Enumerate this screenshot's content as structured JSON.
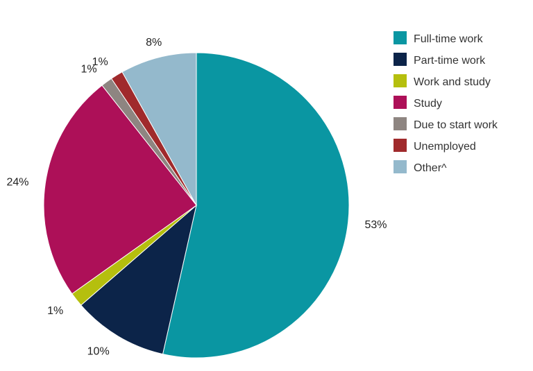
{
  "chart_data": {
    "type": "pie",
    "title": "",
    "legend_position": "top-right",
    "slices": [
      {
        "name": "Full-time work",
        "value": 53,
        "label": "53%",
        "color": "#0a96a2"
      },
      {
        "name": "Part-time work",
        "value": 10,
        "label": "10%",
        "color": "#0c2449"
      },
      {
        "name": "Work and study",
        "value": 1.5,
        "label": "1%",
        "color": "#b5bf0e"
      },
      {
        "name": "Study",
        "value": 24,
        "label": "24%",
        "color": "#ad1058"
      },
      {
        "name": "Due to start work",
        "value": 1.2,
        "label": "1%",
        "color": "#8e8581"
      },
      {
        "name": "Unemployed",
        "value": 1.3,
        "label": "1%",
        "color": "#a02a2c"
      },
      {
        "name": "Other^",
        "value": 8,
        "label": "8%",
        "color": "#94b9cc"
      }
    ]
  }
}
